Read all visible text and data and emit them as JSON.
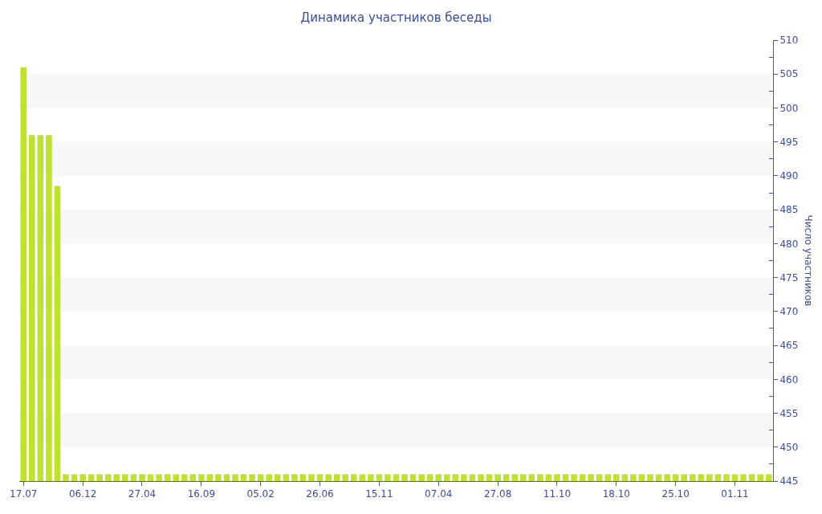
{
  "chart_data": {
    "type": "bar",
    "title": "Динамика участников беседы",
    "ylabel": "Число участников",
    "categories": [
      "17.07",
      null,
      null,
      null,
      null,
      null,
      null,
      "06.12",
      null,
      null,
      null,
      null,
      null,
      null,
      "27.04",
      null,
      null,
      null,
      null,
      null,
      null,
      "16.09",
      null,
      null,
      null,
      null,
      null,
      null,
      "05.02",
      null,
      null,
      null,
      null,
      null,
      null,
      "26.06",
      null,
      null,
      null,
      null,
      null,
      null,
      "15.11",
      null,
      null,
      null,
      null,
      null,
      null,
      "07.04",
      null,
      null,
      null,
      null,
      null,
      null,
      "27.08",
      null,
      null,
      null,
      null,
      null,
      null,
      "11.10",
      null,
      null,
      null,
      null,
      null,
      null,
      "18.10",
      null,
      null,
      null,
      null,
      null,
      null,
      "25.10",
      null,
      null,
      null,
      null,
      null,
      null,
      "01.11",
      null,
      null,
      null,
      null
    ],
    "values": [
      506,
      496,
      496,
      496,
      488.5,
      446,
      446,
      446,
      446,
      446,
      446,
      446,
      446,
      446,
      446,
      446,
      446,
      446,
      446,
      446,
      446,
      446,
      446,
      446,
      446,
      446,
      446,
      446,
      446,
      446,
      446,
      446,
      446,
      446,
      446,
      446,
      446,
      446,
      446,
      446,
      446,
      446,
      446,
      446,
      446,
      446,
      446,
      446,
      446,
      446,
      446,
      446,
      446,
      446,
      446,
      446,
      446,
      446,
      446,
      446,
      446,
      446,
      446,
      446,
      446,
      446,
      446,
      446,
      446,
      446,
      446,
      446,
      446,
      446,
      446,
      446,
      446,
      446,
      446,
      446,
      446,
      446,
      446,
      446,
      446,
      446,
      446,
      446,
      446
    ],
    "color": "#bde22f",
    "ylim": [
      445,
      510
    ],
    "yticks": [
      445,
      {
        "value": 447.5,
        "label": null
      },
      450,
      {
        "value": 452.5,
        "label": null
      },
      455,
      {
        "value": 457.5,
        "label": null
      },
      460,
      {
        "value": 462.5,
        "label": null
      },
      465,
      {
        "value": 467.5,
        "label": null
      },
      470,
      {
        "value": 472.5,
        "label": null
      },
      475,
      {
        "value": 477.5,
        "label": null
      },
      480,
      {
        "value": 482.5,
        "label": null
      },
      485,
      {
        "value": 487.5,
        "label": null
      },
      490,
      {
        "value": 492.5,
        "label": null
      },
      495,
      {
        "value": 497.5,
        "label": null
      },
      500,
      {
        "value": 502.5,
        "label": null
      },
      505,
      {
        "value": 507.5,
        "label": null
      },
      510
    ],
    "bands": [
      {
        "axis": "y",
        "from": 450,
        "to": 455,
        "color": "#f7f7f7"
      },
      {
        "axis": "y",
        "from": 460,
        "to": 465,
        "color": "#f7f7f7"
      },
      {
        "axis": "y",
        "from": 470,
        "to": 475,
        "color": "#f7f7f7"
      },
      {
        "axis": "y",
        "from": 480,
        "to": 485,
        "color": "#f7f7f7"
      },
      {
        "axis": "y",
        "from": 490,
        "to": 495,
        "color": "#f7f7f7"
      },
      {
        "axis": "y",
        "from": 500,
        "to": 505,
        "color": "#f7f7f7"
      }
    ]
  }
}
